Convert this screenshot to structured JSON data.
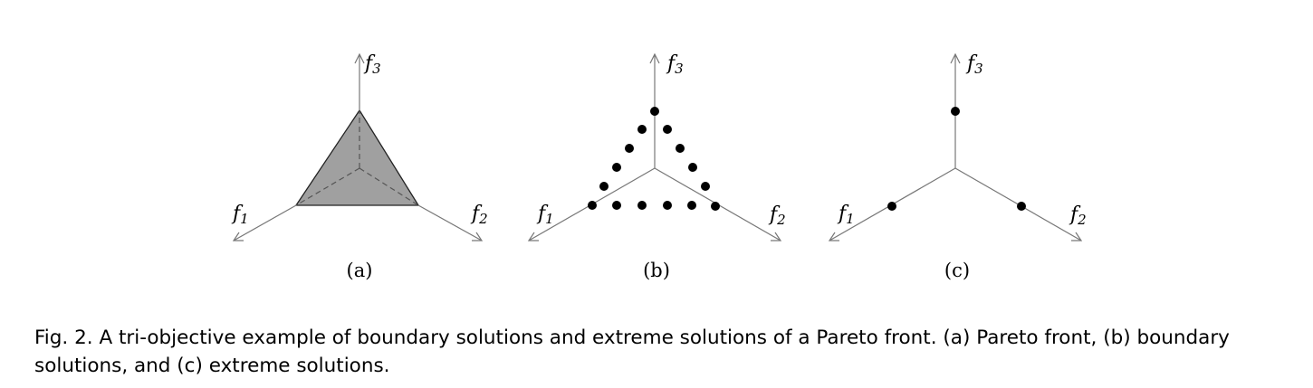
{
  "panels": [
    {
      "id": "a",
      "label": "(a)",
      "axis_names": [
        "f",
        "f",
        "f"
      ],
      "axis_subs": [
        "1",
        "2",
        "3"
      ],
      "content": "shaded-triangle"
    },
    {
      "id": "b",
      "label": "(b)",
      "axis_names": [
        "f",
        "f",
        "f"
      ],
      "axis_subs": [
        "1",
        "2",
        "3"
      ],
      "content": "boundary-dots"
    },
    {
      "id": "c",
      "label": "(c)",
      "axis_names": [
        "f",
        "f",
        "f"
      ],
      "axis_subs": [
        "1",
        "2",
        "3"
      ],
      "content": "extreme-dots"
    }
  ],
  "colors": {
    "axis": "#777777",
    "front_fill": "#a0a0a0",
    "front_edge": "#222222",
    "dot": "#000000"
  },
  "caption": {
    "text": "Fig. 2.  A tri-objective example of boundary solutions and extreme solutions of a Pareto front. (a) Pareto front, (b) boundary solutions, and (c) extreme solutions."
  }
}
